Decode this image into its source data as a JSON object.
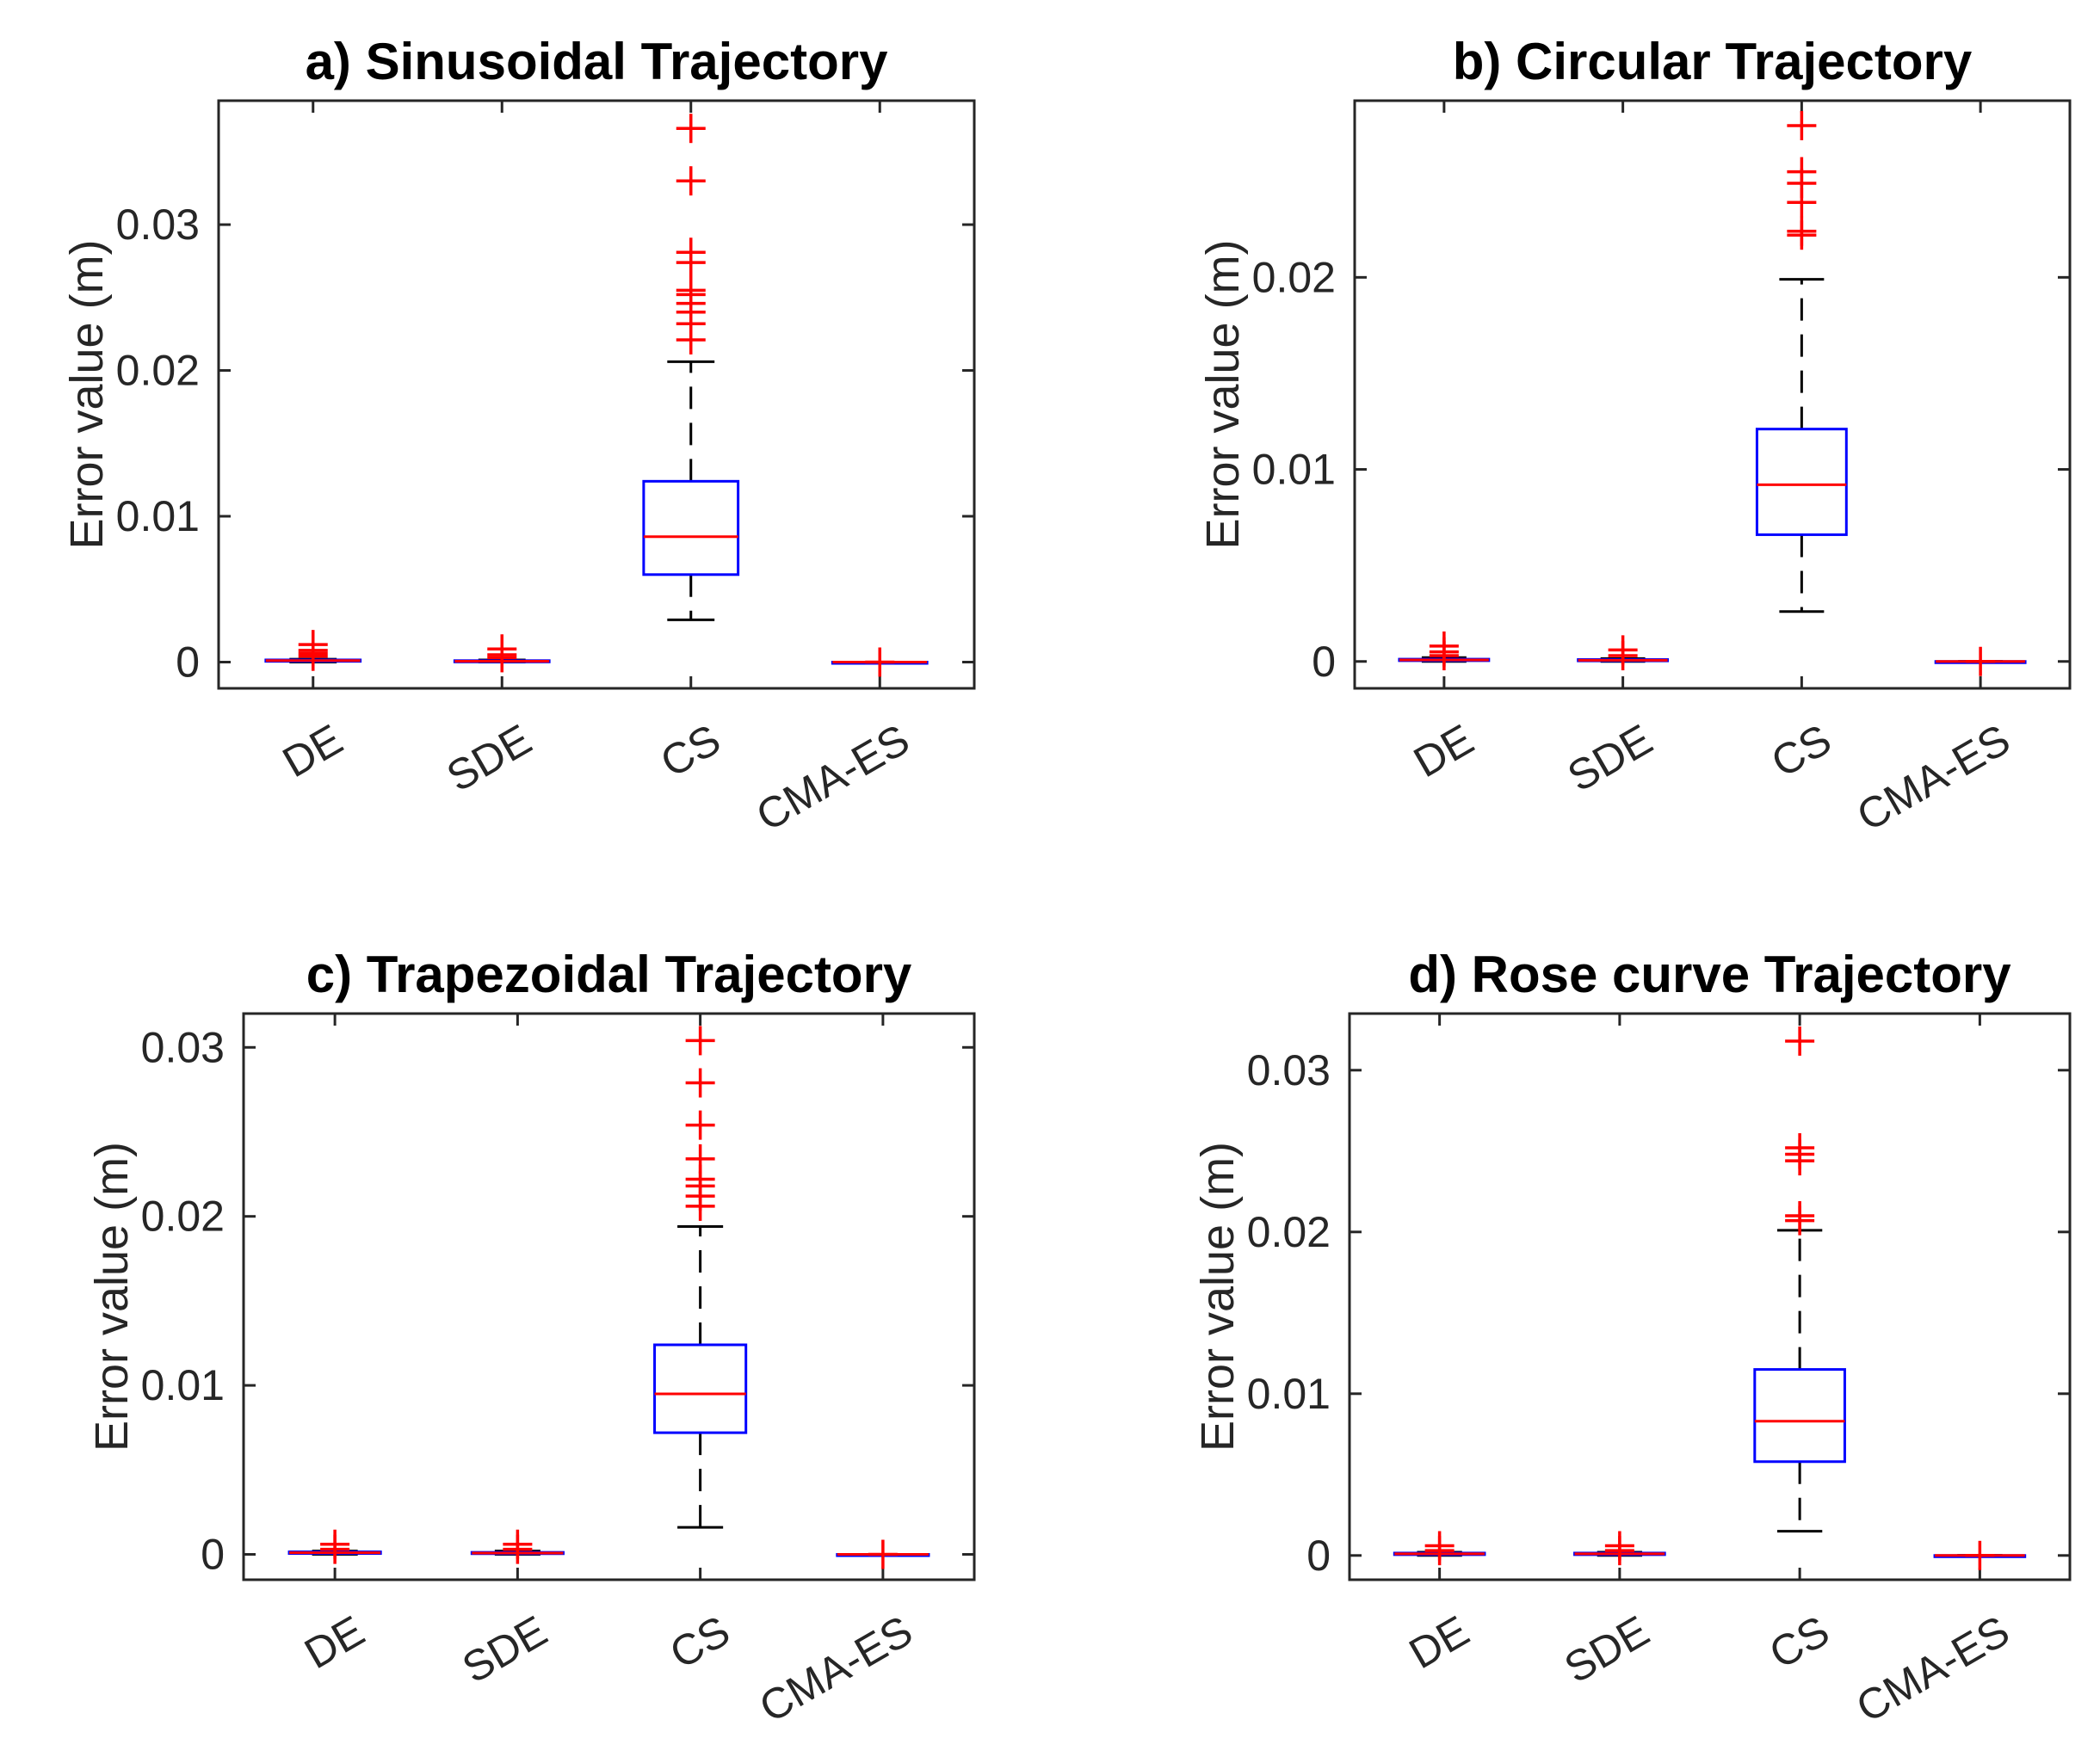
{
  "chart_data": [
    {
      "type": "boxplot",
      "title": "a) Sinusoidal Trajectory",
      "ylabel": "Error value (m)",
      "xlabel": "",
      "categories": [
        "DE",
        "SDE",
        "CS",
        "CMA-ES"
      ],
      "ylim": [
        -0.0018,
        0.0385
      ],
      "yticks": [
        0,
        0.01,
        0.02,
        0.03
      ],
      "ytick_labels": [
        "0",
        "0.01",
        "0.02",
        "0.03"
      ],
      "boxes": [
        {
          "name": "DE",
          "q1": 5e-05,
          "median": 0.0001,
          "q3": 0.00015,
          "whisker_low": 0.0,
          "whisker_high": 0.0002,
          "outliers": [
            0.0004,
            0.0006,
            0.0008,
            0.0012
          ]
        },
        {
          "name": "SDE",
          "q1": 3e-05,
          "median": 6e-05,
          "q3": 0.0001,
          "whisker_low": 0.0,
          "whisker_high": 0.00015,
          "outliers": [
            0.0003,
            0.0005,
            0.0009
          ]
        },
        {
          "name": "CS",
          "q1": 0.006,
          "median": 0.0086,
          "q3": 0.0124,
          "whisker_low": 0.0029,
          "whisker_high": 0.0206,
          "outliers": [
            0.0221,
            0.0232,
            0.024,
            0.0246,
            0.0252,
            0.0255,
            0.0274,
            0.0281,
            0.033,
            0.0366
          ]
        },
        {
          "name": "CMA-ES",
          "q1": 0.0,
          "median": 0.0,
          "q3": 0.0,
          "whisker_low": 0.0,
          "whisker_high": 0.0,
          "outliers": [
            0.0
          ]
        }
      ]
    },
    {
      "type": "boxplot",
      "title": "b) Circular Trajectory",
      "ylabel": "Error value (m)",
      "xlabel": "",
      "categories": [
        "DE",
        "SDE",
        "CS",
        "CMA-ES"
      ],
      "ylim": [
        -0.0014,
        0.0292
      ],
      "yticks": [
        0,
        0.01,
        0.02
      ],
      "ytick_labels": [
        "0",
        "0.01",
        "0.02"
      ],
      "boxes": [
        {
          "name": "DE",
          "q1": 4e-05,
          "median": 8e-05,
          "q3": 0.00012,
          "whisker_low": 0.0,
          "whisker_high": 0.0002,
          "outliers": [
            0.0003,
            0.0005,
            0.0008
          ]
        },
        {
          "name": "SDE",
          "q1": 3e-05,
          "median": 6e-05,
          "q3": 0.0001,
          "whisker_low": 0.0,
          "whisker_high": 0.00015,
          "outliers": [
            0.0003,
            0.0006
          ]
        },
        {
          "name": "CS",
          "q1": 0.0066,
          "median": 0.0092,
          "q3": 0.0121,
          "whisker_low": 0.0026,
          "whisker_high": 0.0199,
          "outliers": [
            0.0222,
            0.0224,
            0.0239,
            0.0249,
            0.0255,
            0.0279
          ]
        },
        {
          "name": "CMA-ES",
          "q1": 0.0,
          "median": 0.0,
          "q3": 0.0,
          "whisker_low": 0.0,
          "whisker_high": 0.0,
          "outliers": [
            0.0
          ]
        }
      ]
    },
    {
      "type": "boxplot",
      "title": "c) Trapezoidal Trajectory",
      "ylabel": "Error value (m)",
      "xlabel": "",
      "categories": [
        "DE",
        "SDE",
        "CS",
        "CMA-ES"
      ],
      "ylim": [
        -0.0015,
        0.032
      ],
      "yticks": [
        0,
        0.01,
        0.02,
        0.03
      ],
      "ytick_labels": [
        "0",
        "0.01",
        "0.02",
        "0.03"
      ],
      "boxes": [
        {
          "name": "DE",
          "q1": 5e-05,
          "median": 0.0001,
          "q3": 0.00015,
          "whisker_low": 0.0,
          "whisker_high": 0.0002,
          "outliers": [
            0.0003,
            0.0006
          ]
        },
        {
          "name": "SDE",
          "q1": 4e-05,
          "median": 8e-05,
          "q3": 0.00012,
          "whisker_low": 0.0,
          "whisker_high": 0.0002,
          "outliers": [
            0.0003,
            0.0006
          ]
        },
        {
          "name": "CS",
          "q1": 0.0072,
          "median": 0.0095,
          "q3": 0.0124,
          "whisker_low": 0.0016,
          "whisker_high": 0.0194,
          "outliers": [
            0.0206,
            0.0212,
            0.0218,
            0.0222,
            0.0234,
            0.0254,
            0.0279,
            0.0304
          ]
        },
        {
          "name": "CMA-ES",
          "q1": 0.0,
          "median": 0.0,
          "q3": 0.0,
          "whisker_low": 0.0,
          "whisker_high": 0.0,
          "outliers": [
            0.0
          ]
        }
      ]
    },
    {
      "type": "boxplot",
      "title": "d) Rose curve Trajectory",
      "ylabel": "Error value (m)",
      "xlabel": "",
      "categories": [
        "DE",
        "SDE",
        "CS",
        "CMA-ES"
      ],
      "ylim": [
        -0.0015,
        0.0335
      ],
      "yticks": [
        0,
        0.01,
        0.02,
        0.03
      ],
      "ytick_labels": [
        "0",
        "0.01",
        "0.02",
        "0.03"
      ],
      "boxes": [
        {
          "name": "DE",
          "q1": 5e-05,
          "median": 0.0001,
          "q3": 0.00015,
          "whisker_low": 0.0,
          "whisker_high": 0.0002,
          "outliers": [
            0.0003,
            0.0006
          ]
        },
        {
          "name": "SDE",
          "q1": 5e-05,
          "median": 0.0001,
          "q3": 0.00015,
          "whisker_low": 0.0,
          "whisker_high": 0.0002,
          "outliers": [
            0.0003,
            0.0006
          ]
        },
        {
          "name": "CS",
          "q1": 0.0058,
          "median": 0.0083,
          "q3": 0.0115,
          "whisker_low": 0.0015,
          "whisker_high": 0.0201,
          "outliers": [
            0.0207,
            0.021,
            0.0244,
            0.0248,
            0.0252,
            0.0318
          ]
        },
        {
          "name": "CMA-ES",
          "q1": 0.0,
          "median": 0.0,
          "q3": 0.0,
          "whisker_low": 0.0,
          "whisker_high": 0.0,
          "outliers": [
            0.0
          ]
        }
      ]
    }
  ],
  "colors": {
    "box": "#0000ff",
    "median": "#ff0000",
    "outlier": "#ff0000",
    "whisker": "#000000",
    "axis": "#262626"
  }
}
